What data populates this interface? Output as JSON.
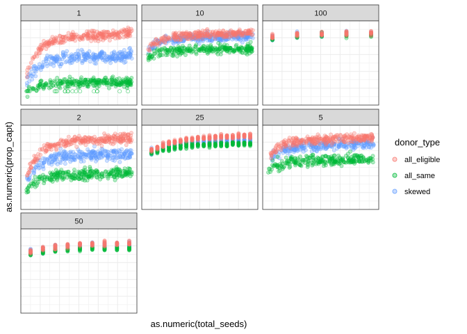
{
  "chart_data": {
    "type": "scatter",
    "xlabel": "as.numeric(total_seeds)",
    "ylabel": "as.numeric(prop_capt)",
    "legend": {
      "title": "donor_type",
      "placement": "right",
      "entries": [
        "all_eligible",
        "all_same",
        "skewed"
      ]
    },
    "colors": {
      "all_eligible": "#F8766D",
      "all_same": "#00BA38",
      "skewed": "#619CFF",
      "panel_border": "#333333",
      "strip_fill": "#D9D9D9",
      "grid": "#EBEBEB"
    },
    "grid": true,
    "x_scale": "free",
    "y_scale": "free",
    "facet_order": [
      "1",
      "10",
      "100",
      "2",
      "25",
      "5",
      "50"
    ],
    "facets": [
      {
        "label": "1",
        "x_kind": "dense",
        "series": {
          "all_eligible": {
            "y0": 0.08,
            "y1": 0.88,
            "spread": 0.03
          },
          "all_same": {
            "y0": 0.05,
            "y1": 0.26,
            "spread": 0.03
          },
          "skewed": {
            "y0": 0.08,
            "y1": 0.6,
            "spread": 0.04
          }
        }
      },
      {
        "label": "10",
        "x_kind": "dense",
        "series": {
          "all_eligible": {
            "y0": 0.55,
            "y1": 0.88,
            "spread": 0.025
          },
          "all_same": {
            "y0": 0.52,
            "y1": 0.68,
            "spread": 0.03
          },
          "skewed": {
            "y0": 0.55,
            "y1": 0.84,
            "spread": 0.03
          }
        }
      },
      {
        "label": "100",
        "x_kind": "discrete",
        "n": 5,
        "series": {
          "all_eligible": {
            "y0": 0.84,
            "y1": 0.88,
            "spread": 0.015
          },
          "all_same": {
            "y0": 0.81,
            "y1": 0.86,
            "spread": 0.015
          },
          "skewed": {
            "y0": 0.82,
            "y1": 0.87,
            "spread": 0.018
          }
        }
      },
      {
        "label": "2",
        "x_kind": "dense",
        "series": {
          "all_eligible": {
            "y0": 0.1,
            "y1": 0.88,
            "spread": 0.03
          },
          "all_same": {
            "y0": 0.1,
            "y1": 0.43,
            "spread": 0.035
          },
          "skewed": {
            "y0": 0.1,
            "y1": 0.68,
            "spread": 0.04
          }
        }
      },
      {
        "label": "25",
        "x_kind": "discrete",
        "n": 18,
        "series": {
          "all_eligible": {
            "y0": 0.72,
            "y1": 0.9,
            "spread": 0.015
          },
          "all_same": {
            "y0": 0.69,
            "y1": 0.8,
            "spread": 0.015
          },
          "skewed": {
            "y0": 0.7,
            "y1": 0.84,
            "spread": 0.02
          }
        }
      },
      {
        "label": "5",
        "x_kind": "dense",
        "series": {
          "all_eligible": {
            "y0": 0.45,
            "y1": 0.88,
            "spread": 0.03
          },
          "all_same": {
            "y0": 0.4,
            "y1": 0.6,
            "spread": 0.035
          },
          "skewed": {
            "y0": 0.45,
            "y1": 0.8,
            "spread": 0.035
          }
        }
      },
      {
        "label": "50",
        "x_kind": "discrete",
        "n": 9,
        "series": {
          "all_eligible": {
            "y0": 0.75,
            "y1": 0.85,
            "spread": 0.015
          },
          "all_same": {
            "y0": 0.72,
            "y1": 0.79,
            "spread": 0.015
          },
          "skewed": {
            "y0": 0.74,
            "y1": 0.83,
            "spread": 0.02
          }
        }
      }
    ]
  }
}
